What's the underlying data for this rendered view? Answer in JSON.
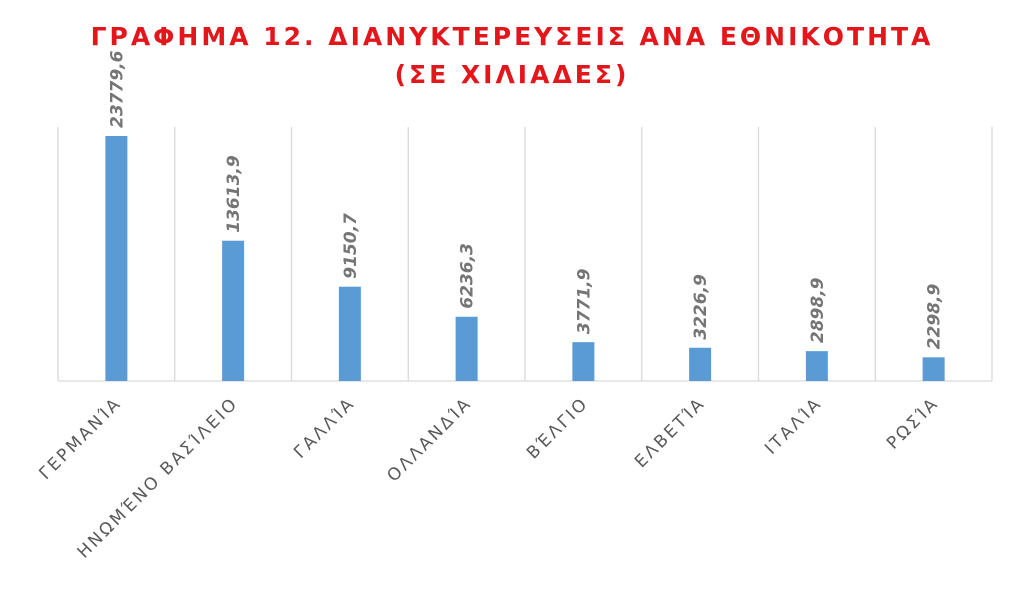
{
  "chart_data": {
    "type": "bar",
    "title_line1": "ΓΡΑΦΗΜΑ 12. ΔΙΑΝΥΚΤΕΡΕΥΣΕΙΣ ΑΝΑ ΕΘΝΙΚΟΤΗΤΑ",
    "title_line2": "(ΣΕ ΧΙΛΙΑΔΕΣ)",
    "categories": [
      "ΓΕΡΜΑΝΊΑ",
      "ΗΝΩΜΈΝΟ ΒΑΣΊΛΕΙΟ",
      "ΓΑΛΛΊΑ",
      "ΟΛΛΑΝΔΊΑ",
      "ΒΈΛΓΙΟ",
      "ΕΛΒΕΤΊΑ",
      "ΙΤΑΛΊΑ",
      "ΡΩΣΊΑ"
    ],
    "values": [
      23779.6,
      13613.9,
      9150.7,
      6236.3,
      3771.9,
      3226.9,
      2898.9,
      2298.9
    ],
    "value_labels": [
      "23779,6",
      "13613,9",
      "9150,7",
      "6236,3",
      "3771,9",
      "3226,9",
      "2898,9",
      "2298,9"
    ],
    "ylim": [
      0,
      24000
    ],
    "grid": "vertical category separators",
    "legend": "none",
    "bar_color": "#5b9bd5",
    "title_color": "#e3161b"
  }
}
